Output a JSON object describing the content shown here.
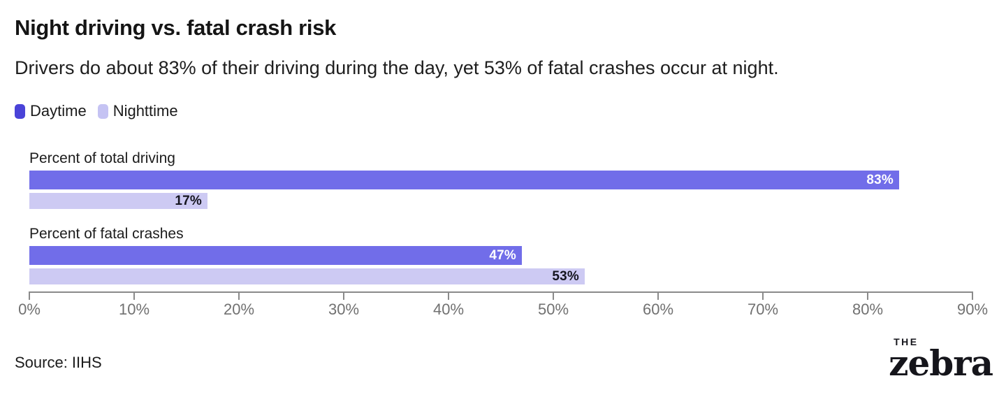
{
  "chart_data": {
    "type": "bar",
    "orientation": "horizontal",
    "title": "Night driving vs. fatal crash risk",
    "subtitle": "Drivers do about 83% of their driving during the day, yet 53% of fatal crashes occur at night.",
    "categories": [
      "Percent of total driving",
      "Percent of fatal crashes"
    ],
    "series": [
      {
        "name": "Daytime",
        "values": [
          83,
          47
        ],
        "labels": [
          "83%",
          "47%"
        ]
      },
      {
        "name": "Nighttime",
        "values": [
          17,
          53
        ],
        "labels": [
          "17%",
          "53%"
        ]
      }
    ],
    "legend": [
      {
        "label": "Daytime",
        "color": "#4a43d8"
      },
      {
        "label": "Nighttime",
        "color": "#c5c3f3"
      }
    ],
    "legend_position": "top-left",
    "axis": {
      "min": 0,
      "max": 90,
      "ticks": [
        "0%",
        "10%",
        "20%",
        "30%",
        "40%",
        "50%",
        "60%",
        "70%",
        "80%",
        "90%"
      ],
      "grid": false
    },
    "source": "Source: IIHS"
  },
  "colors": {
    "bar_daytime": "#716de9",
    "bar_nighttime": "#cdcaf3",
    "value_label_on_dark": "#ffffff",
    "value_label_on_light": "#15151f"
  },
  "logo": {
    "line1": "THE",
    "line2": "zebra"
  }
}
